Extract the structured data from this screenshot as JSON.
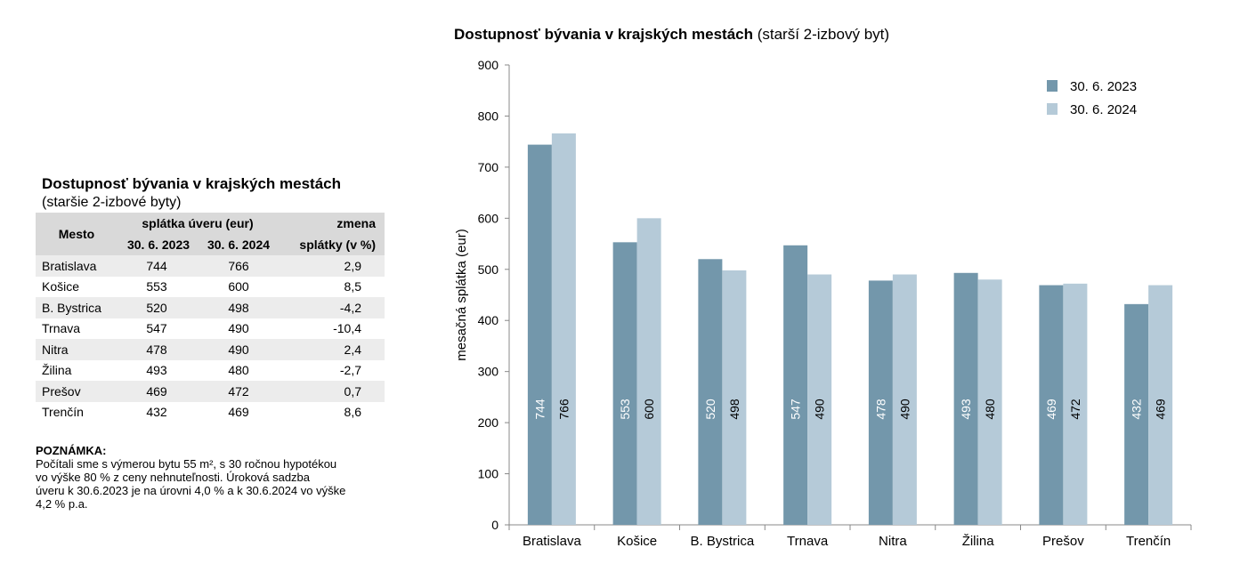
{
  "table": {
    "title": "Dostupnosť bývania v krajských mestách",
    "subtitle": "(staršie 2-izbové byty)",
    "headers": {
      "mesto": "Mesto",
      "group": "splátka úveru (eur)",
      "date1": "30. 6. 2023",
      "date2": "30. 6. 2024",
      "change1": "zmena",
      "change2": "splátky (v %)"
    },
    "rows": [
      {
        "city": "Bratislava",
        "v2023": "744",
        "v2024": "766",
        "change": "2,9"
      },
      {
        "city": "Košice",
        "v2023": "553",
        "v2024": "600",
        "change": "8,5"
      },
      {
        "city": "B. Bystrica",
        "v2023": "520",
        "v2024": "498",
        "change": "-4,2"
      },
      {
        "city": "Trnava",
        "v2023": "547",
        "v2024": "490",
        "change": "-10,4"
      },
      {
        "city": "Nitra",
        "v2023": "478",
        "v2024": "490",
        "change": "2,4"
      },
      {
        "city": "Žilina",
        "v2023": "493",
        "v2024": "480",
        "change": "-2,7"
      },
      {
        "city": "Prešov",
        "v2023": "469",
        "v2024": "472",
        "change": "0,7"
      },
      {
        "city": "Trenčín",
        "v2023": "432",
        "v2024": "469",
        "change": "8,6"
      }
    ]
  },
  "note": {
    "heading": "POZNÁMKA:",
    "lines": [
      "Počítali sme s výmerou bytu 55 m², s 30 ročnou hypotékou",
      "vo výške 80 % z ceny nehnuteľnosti. Úroková sadzba",
      "úveru k 30.6.2023 je na úrovni 4,0 % a k 30.6.2024 vo výške",
      "4,2 % p.a."
    ]
  },
  "colors": {
    "series1": "#7397ab",
    "series2": "#b5cad8",
    "axis": "#888888",
    "label_on_dark": "#ffffff",
    "label_on_light": "#000000"
  },
  "chart_data": {
    "type": "bar",
    "title_bold": "Dostupnosť bývania v krajských mestách",
    "title_rest": " (starší 2-izbový byt)",
    "ylabel": "mesačná splátka (eur)",
    "xlabel": "",
    "ylim": [
      0,
      900
    ],
    "yticks": [
      0,
      100,
      200,
      300,
      400,
      500,
      600,
      700,
      800,
      900
    ],
    "categories": [
      "Bratislava",
      "Košice",
      "B. Bystrica",
      "Trnava",
      "Nitra",
      "Žilina",
      "Prešov",
      "Trenčín"
    ],
    "series": [
      {
        "name": "30. 6. 2023",
        "values": [
          744,
          553,
          520,
          547,
          478,
          493,
          469,
          432
        ]
      },
      {
        "name": "30. 6. 2024",
        "values": [
          766,
          600,
          498,
          490,
          490,
          480,
          472,
          469
        ]
      }
    ],
    "legend": "top-right",
    "grid": false
  }
}
